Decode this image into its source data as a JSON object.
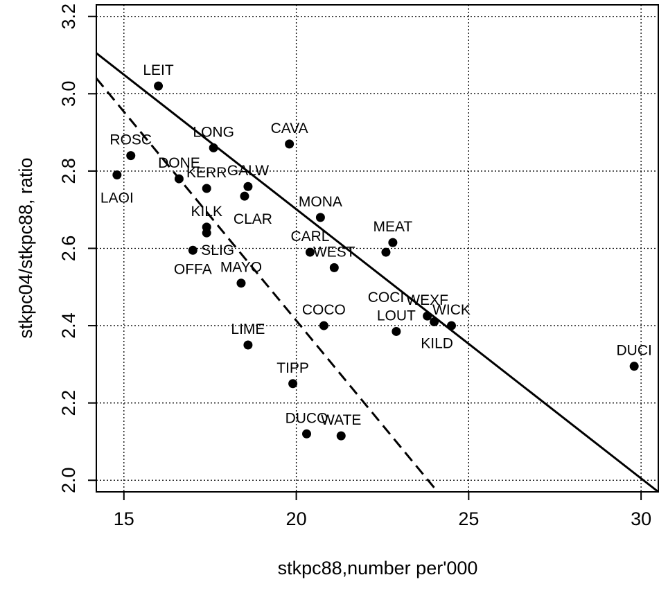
{
  "chart_data": {
    "type": "scatter",
    "xlabel": "stkpc88,number per'000",
    "ylabel": "stkpc04/stkpc88, ratio",
    "xlim": [
      14.2,
      30.5
    ],
    "ylim": [
      1.97,
      3.23
    ],
    "x_ticks": [
      15,
      20,
      25,
      30
    ],
    "y_ticks": [
      2.0,
      2.2,
      2.4,
      2.6,
      2.8,
      3.0,
      3.2
    ],
    "x_tick_labels": [
      "15",
      "20",
      "25",
      "30"
    ],
    "y_tick_labels": [
      "2.0",
      "2.2",
      "2.4",
      "2.6",
      "2.8",
      "3.0",
      "3.2"
    ],
    "grid": true,
    "points": [
      {
        "label": "LEIT",
        "x": 16.0,
        "y": 3.02
      },
      {
        "label": "ROSC",
        "x": 15.2,
        "y": 2.84
      },
      {
        "label": "LAOI",
        "x": 14.8,
        "y": 2.79
      },
      {
        "label": "DONE",
        "x": 16.6,
        "y": 2.78
      },
      {
        "label": "LONG",
        "x": 17.6,
        "y": 2.86
      },
      {
        "label": "CAVA",
        "x": 19.8,
        "y": 2.87
      },
      {
        "label": "KERR",
        "x": 17.4,
        "y": 2.755
      },
      {
        "label": "GALW",
        "x": 18.6,
        "y": 2.76
      },
      {
        "label": "CLAR",
        "x": 18.5,
        "y": 2.735
      },
      {
        "label": "KILK",
        "x": 17.4,
        "y": 2.655
      },
      {
        "label": "SLIG",
        "x": 17.4,
        "y": 2.64
      },
      {
        "label": "OFFA",
        "x": 17.0,
        "y": 2.595
      },
      {
        "label": "MAYO",
        "x": 18.4,
        "y": 2.51
      },
      {
        "label": "MONA",
        "x": 20.7,
        "y": 2.68
      },
      {
        "label": "CARL",
        "x": 20.4,
        "y": 2.59
      },
      {
        "label": "WEST",
        "x": 21.1,
        "y": 2.55
      },
      {
        "label": "MEAT",
        "x": 22.8,
        "y": 2.615
      },
      {
        "label": "COCI",
        "x": 22.6,
        "y": 2.59
      },
      {
        "label": "COCO",
        "x": 20.8,
        "y": 2.4
      },
      {
        "label": "LIME",
        "x": 18.6,
        "y": 2.35
      },
      {
        "label": "LOUT",
        "x": 22.9,
        "y": 2.385
      },
      {
        "label": "WEXF",
        "x": 23.8,
        "y": 2.425
      },
      {
        "label": "WICK",
        "x": 24.5,
        "y": 2.4
      },
      {
        "label": "KILD",
        "x": 24.0,
        "y": 2.41
      },
      {
        "label": "TIPP",
        "x": 19.9,
        "y": 2.25
      },
      {
        "label": "DUCO",
        "x": 20.3,
        "y": 2.12
      },
      {
        "label": "WATE",
        "x": 21.3,
        "y": 2.115
      },
      {
        "label": "DUCI",
        "x": 29.8,
        "y": 2.295
      }
    ],
    "lines": [
      {
        "style": "solid",
        "from": [
          14.2,
          3.105
        ],
        "to": [
          30.5,
          1.97
        ]
      },
      {
        "style": "dashed",
        "from": [
          14.2,
          3.04
        ],
        "to": [
          24.1,
          1.97
        ]
      }
    ]
  }
}
